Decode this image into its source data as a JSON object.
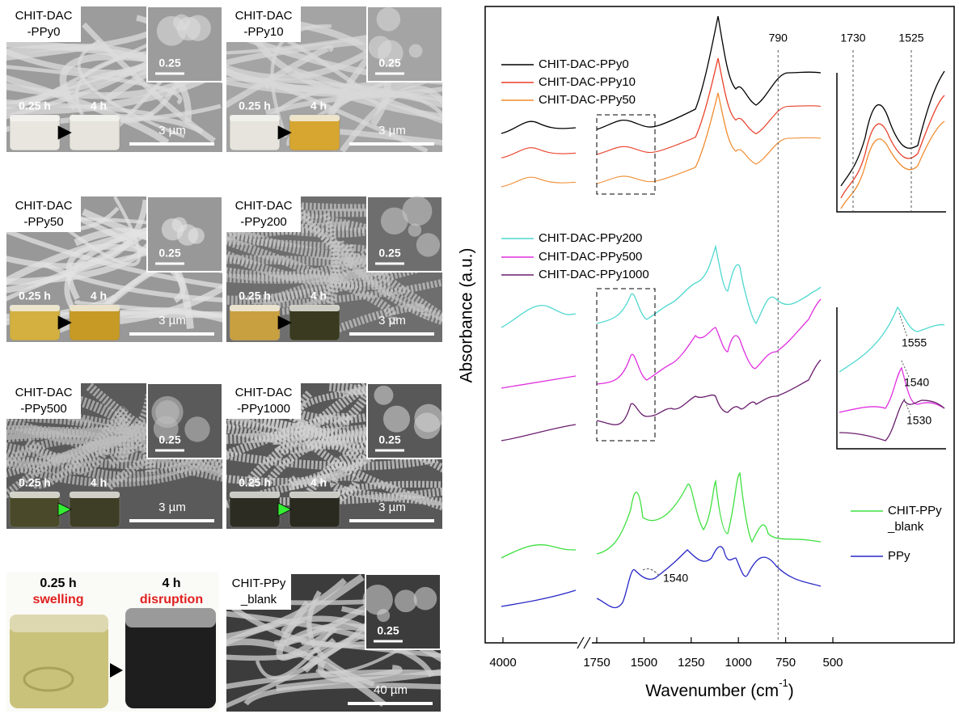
{
  "sem_panels": [
    {
      "label": [
        "CHIT-DAC",
        "-PPy0"
      ],
      "inset_scale": "0.25",
      "scale_bar": "3 µm",
      "times": [
        "0.25 h",
        "4 h"
      ]
    },
    {
      "label": [
        "CHIT-DAC",
        "-PPy10"
      ],
      "inset_scale": "0.25",
      "scale_bar": "3 µm",
      "times": [
        "0.25 h",
        "4 h"
      ]
    },
    {
      "label": [
        "CHIT-DAC",
        "-PPy50"
      ],
      "inset_scale": "0.25",
      "scale_bar": "3 µm",
      "times": [
        "0.25 h",
        "4 h"
      ]
    },
    {
      "label": [
        "CHIT-DAC",
        "-PPy200"
      ],
      "inset_scale": "0.25",
      "scale_bar": "3 µm",
      "times": [
        "0.25 h",
        "4 h"
      ]
    },
    {
      "label": [
        "CHIT-DAC",
        "-PPy500"
      ],
      "inset_scale": "0.25",
      "scale_bar": "3 µm",
      "times": [
        "0.25 h",
        "4 h"
      ]
    },
    {
      "label": [
        "CHIT-DAC",
        "-PPy1000"
      ],
      "inset_scale": "0.25",
      "scale_bar": "3 µm",
      "times": [
        "0.25 h",
        "4 h"
      ]
    },
    {
      "label": [
        "CHIT-PPy",
        "_blank"
      ],
      "inset_scale": "0.25",
      "scale_bar": "40 µm"
    }
  ],
  "photo": {
    "times": [
      "0.25  h",
      "4 h"
    ],
    "states": [
      "swelling",
      "disruption"
    ]
  },
  "chart_data": {
    "type": "line",
    "xlabel": "Wavenumber (cm",
    "xlabel_sup": "-1",
    "xlabel_end": ")",
    "ylabel": "Absorbance (a.u.)",
    "xticks": [
      4000,
      1750,
      1500,
      1250,
      1000,
      750,
      500
    ],
    "series": [
      {
        "name": "CHIT-DAC-PPy0",
        "color": "#000000"
      },
      {
        "name": "CHIT-DAC-PPy10",
        "color": "#e8402a"
      },
      {
        "name": "CHIT-DAC-PPy50",
        "color": "#f08a2c"
      },
      {
        "name": "CHIT-DAC-PPy200",
        "color": "#4fd8d0"
      },
      {
        "name": "CHIT-DAC-PPy500",
        "color": "#e030e0"
      },
      {
        "name": "CHIT-DAC-PPy1000",
        "color": "#6a1f6e"
      },
      {
        "name": "CHIT-PPy _blank",
        "color": "#3fe040"
      },
      {
        "name": "PPy",
        "color": "#2828c8"
      }
    ],
    "annotations": [
      790,
      1540
    ],
    "insets": [
      {
        "annotations": [
          1730,
          1525
        ]
      },
      {
        "annotations": [
          1555,
          1540,
          1530
        ]
      }
    ]
  }
}
